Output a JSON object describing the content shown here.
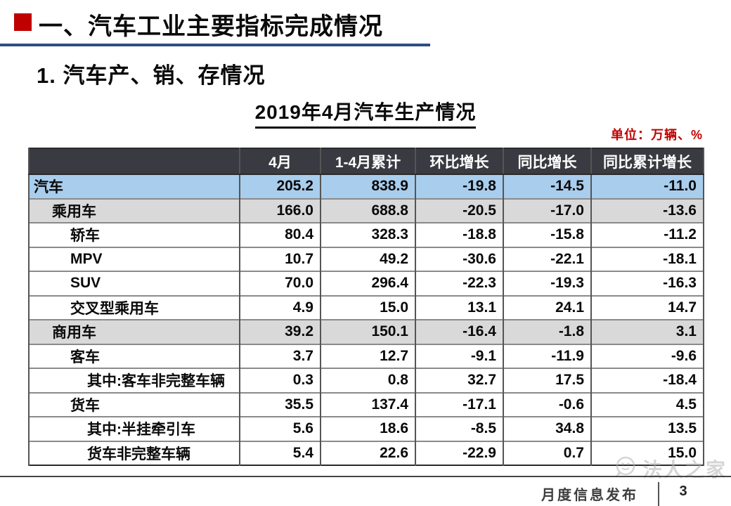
{
  "slide": {
    "section_title": "一、汽车工业主要指标完成情况",
    "subtitle": "1. 汽车产、销、存情况",
    "table_title": "2019年4月汽车生产情况",
    "unit_label": "单位：万辆、%"
  },
  "table": {
    "columns": [
      "",
      "4月",
      "1-4月累计",
      "环比增长",
      "同比增长",
      "同比累计增长"
    ],
    "rows": [
      {
        "label": "汽车",
        "indent": 0,
        "style": "highlight-blue",
        "values": [
          "205.2",
          "838.9",
          "-19.8",
          "-14.5",
          "-11.0"
        ]
      },
      {
        "label": "乘用车",
        "indent": 1,
        "style": "highlight-gray",
        "values": [
          "166.0",
          "688.8",
          "-20.5",
          "-17.0",
          "-13.6"
        ]
      },
      {
        "label": "轿车",
        "indent": 2,
        "style": "plain",
        "values": [
          "80.4",
          "328.3",
          "-18.8",
          "-15.8",
          "-11.2"
        ]
      },
      {
        "label": "MPV",
        "indent": 2,
        "style": "plain",
        "values": [
          "10.7",
          "49.2",
          "-30.6",
          "-22.1",
          "-18.1"
        ]
      },
      {
        "label": "SUV",
        "indent": 2,
        "style": "plain",
        "values": [
          "70.0",
          "296.4",
          "-22.3",
          "-19.3",
          "-16.3"
        ]
      },
      {
        "label": "交叉型乘用车",
        "indent": 2,
        "style": "plain",
        "values": [
          "4.9",
          "15.0",
          "13.1",
          "24.1",
          "14.7"
        ]
      },
      {
        "label": "商用车",
        "indent": 1,
        "style": "highlight-gray",
        "values": [
          "39.2",
          "150.1",
          "-16.4",
          "-1.8",
          "3.1"
        ]
      },
      {
        "label": "客车",
        "indent": 2,
        "style": "plain",
        "values": [
          "3.7",
          "12.7",
          "-9.1",
          "-11.9",
          "-9.6"
        ]
      },
      {
        "label": "其中:客车非完整车辆",
        "indent": 3,
        "style": "plain",
        "values": [
          "0.3",
          "0.8",
          "32.7",
          "17.5",
          "-18.4"
        ]
      },
      {
        "label": "货车",
        "indent": 2,
        "style": "plain",
        "values": [
          "35.5",
          "137.4",
          "-17.1",
          "-0.6",
          "4.5"
        ]
      },
      {
        "label": "其中:半挂牵引车",
        "indent": 3,
        "style": "plain",
        "values": [
          "5.6",
          "18.6",
          "-8.5",
          "34.8",
          "13.5"
        ]
      },
      {
        "label": "货车非完整车辆",
        "indent": 3,
        "style": "plain",
        "values": [
          "5.4",
          "22.6",
          "-22.9",
          "0.7",
          "15.0"
        ]
      }
    ]
  },
  "footer": {
    "release_label": "月度信息发布",
    "page_number": "3",
    "watermark_text": "法人之家"
  },
  "colors": {
    "accent_red": "#c00000",
    "rule_navy": "#2e4e7e",
    "header_bg": "#3a3a42",
    "row_blue": "#a9cdec",
    "row_gray": "#d9d9d9",
    "footer_ink": "#3d3d3d",
    "watermark_ink": "#b3b3b3"
  }
}
